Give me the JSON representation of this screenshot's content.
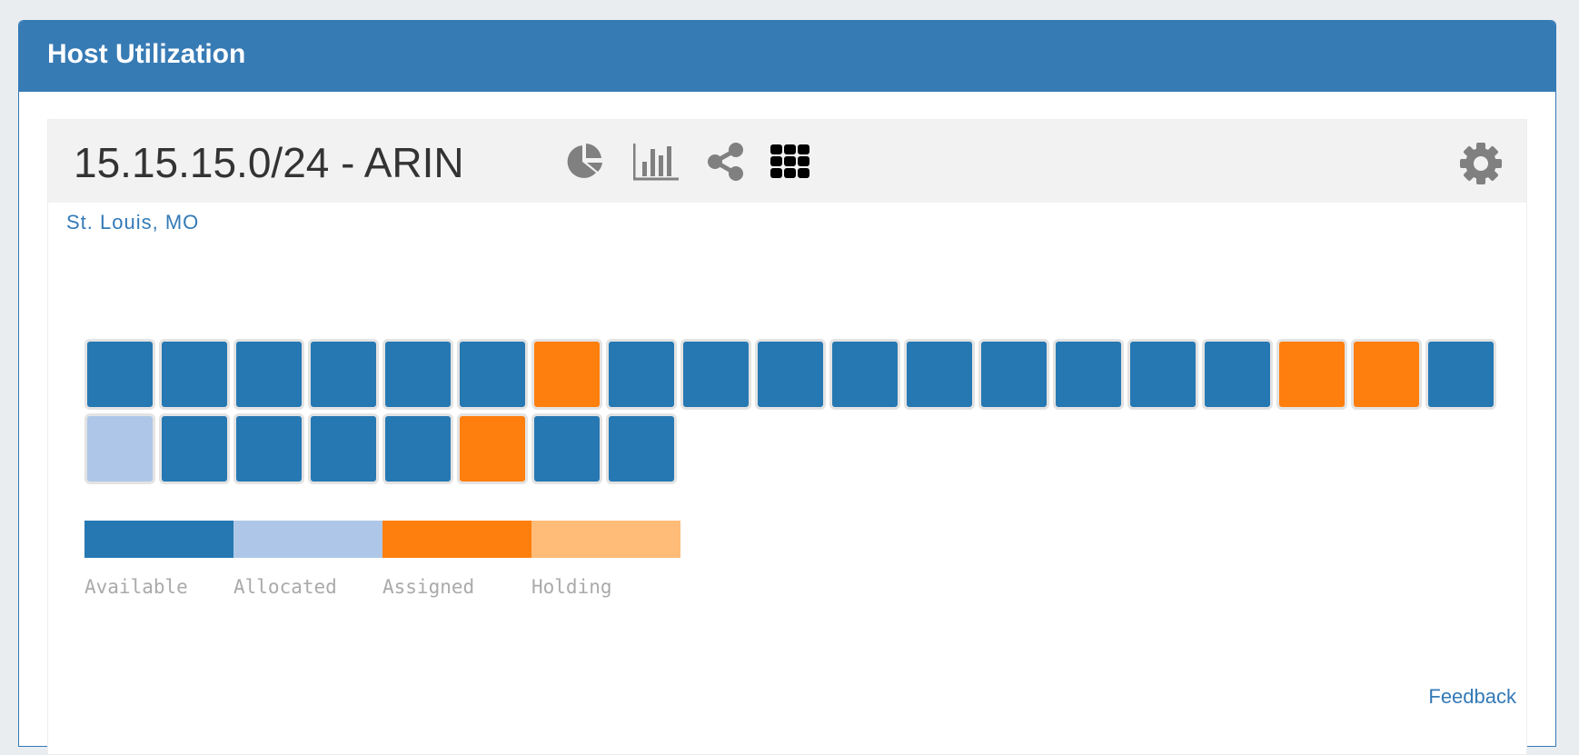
{
  "panel": {
    "title": "Host Utilization"
  },
  "network": {
    "title": "15.15.15.0/24 - ARIN",
    "location": "St. Louis, MO",
    "icons": [
      "pie-chart-icon",
      "bar-chart-icon",
      "share-icon",
      "grid-icon",
      "gear-icon"
    ]
  },
  "colors": {
    "header": "#377bb5",
    "Available": "#2678b2",
    "Allocated": "#aec7e8",
    "Assigned": "#ff7f0e",
    "Holding": "#ffbb78"
  },
  "cells": [
    "Available",
    "Available",
    "Available",
    "Available",
    "Available",
    "Available",
    "Assigned",
    "Available",
    "Available",
    "Available",
    "Available",
    "Available",
    "Available",
    "Available",
    "Available",
    "Available",
    "Assigned",
    "Assigned",
    "Available",
    "Allocated",
    "Available",
    "Available",
    "Available",
    "Available",
    "Assigned",
    "Available",
    "Available"
  ],
  "legend": [
    {
      "label": "Available"
    },
    {
      "label": "Allocated"
    },
    {
      "label": "Assigned"
    },
    {
      "label": "Holding"
    }
  ],
  "feedback": "Feedback"
}
